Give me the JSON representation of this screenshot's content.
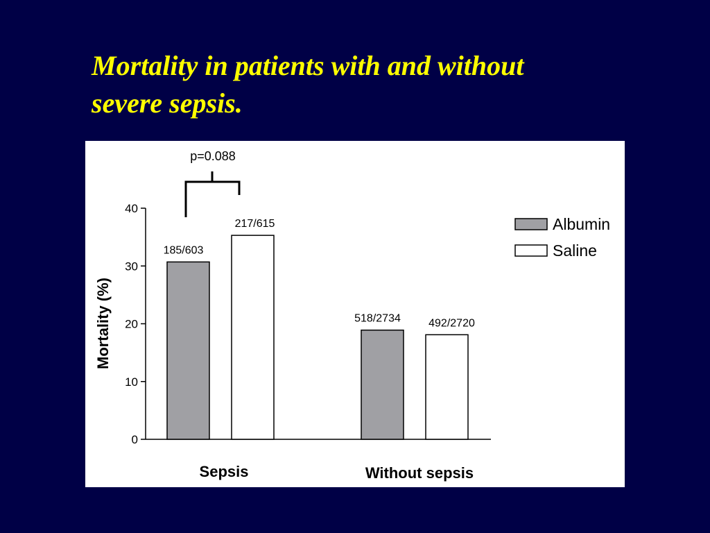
{
  "slide": {
    "title_line1": "Mortality in patients with and without",
    "title_line2": "severe sepsis.",
    "title_color": "#ffff00",
    "background_color": "#000046"
  },
  "chart_data": {
    "type": "bar",
    "title": "",
    "xlabel": "",
    "ylabel": "Mortality (%)",
    "ylim": [
      0,
      40
    ],
    "yticks": [
      "0",
      "10",
      "20",
      "30",
      "40"
    ],
    "grid": false,
    "legend_position": "top-right",
    "categories": [
      "Sepsis",
      "Without sepsis"
    ],
    "series": [
      {
        "name": "Albumin",
        "color": "#a0a0a4",
        "values": [
          30.7,
          18.9
        ],
        "labels": [
          "185/603",
          "518/2734"
        ]
      },
      {
        "name": "Saline",
        "color": "#ffffff",
        "values": [
          35.3,
          18.1
        ],
        "labels": [
          "217/615",
          "492/2720"
        ]
      }
    ],
    "annotations": [
      {
        "text": "p=0.088",
        "category": "Sepsis",
        "type": "significance-bracket"
      }
    ]
  }
}
